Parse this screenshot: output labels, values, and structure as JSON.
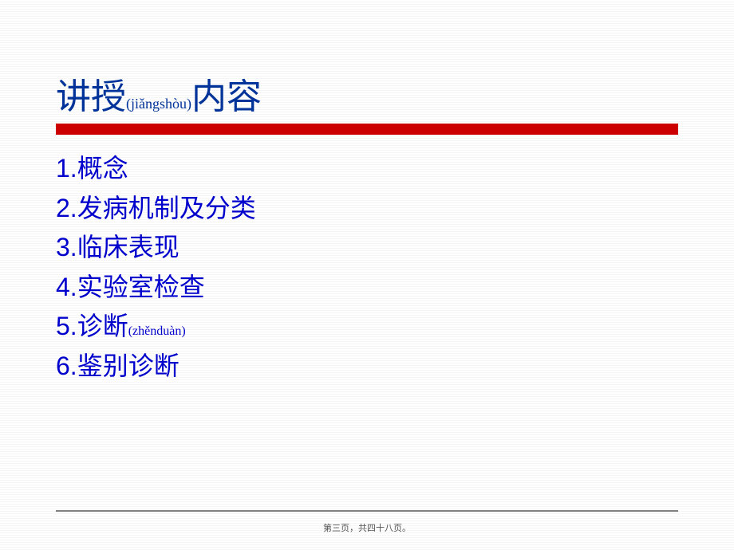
{
  "title": {
    "part1": "讲授",
    "pinyin": "(jiǎngshòu)",
    "part2": "内容",
    "color": "#003399",
    "fontsize_main": 44,
    "fontsize_pinyin": 18
  },
  "red_bar": {
    "color": "#cc0000",
    "height": 14
  },
  "items": [
    {
      "text": "1.概念",
      "pinyin": ""
    },
    {
      "text": "2.发病机制及分类",
      "pinyin": ""
    },
    {
      "text": "3.临床表现",
      "pinyin": ""
    },
    {
      "text": "4.实验室检查",
      "pinyin": ""
    },
    {
      "text": "5.诊断",
      "pinyin": "(zhěnduàn)"
    },
    {
      "text": "6.鉴别诊断",
      "pinyin": ""
    }
  ],
  "item_style": {
    "color": "#0000cc",
    "pinyin_color": "#0000cc",
    "fontsize": 32,
    "pinyin_fontsize": 16
  },
  "bottom_line_color": "#808080",
  "page_number": "第三页，共四十八页。",
  "background_color": "#ffffff"
}
